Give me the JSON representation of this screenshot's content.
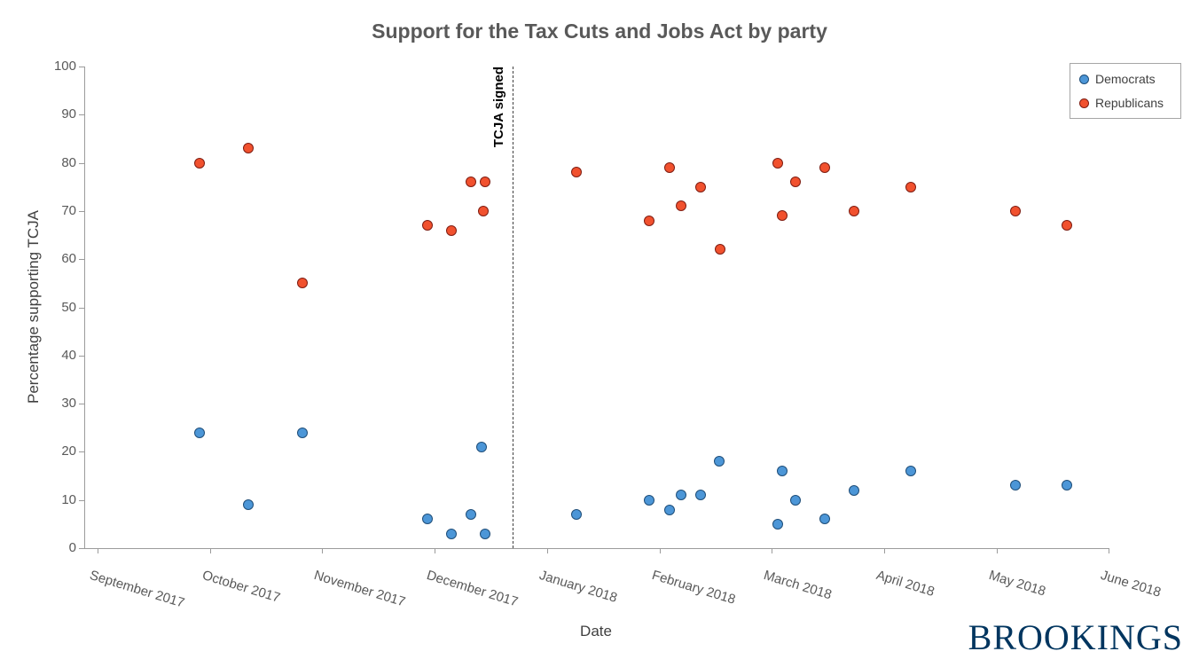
{
  "branding": {
    "logo_text": "BROOKINGS",
    "logo_color": "#00355f"
  },
  "chart_data": {
    "type": "scatter",
    "title": "Support for the Tax Cuts and Jobs Act by party",
    "xlabel": "Date",
    "ylabel": "Percentage supporting TCJA",
    "ylim": [
      0,
      100
    ],
    "y_ticks": [
      0,
      10,
      20,
      30,
      40,
      50,
      60,
      70,
      80,
      90,
      100
    ],
    "x_tick_labels": [
      "September 2017",
      "October 2017",
      "November 2017",
      "December 2017",
      "January 2018",
      "February 2018",
      "March 2018",
      "April 2018",
      "May 2018",
      "June 2018"
    ],
    "x_unit": "months_after_september_2017_tick",
    "grid": false,
    "legend": {
      "position": "top-right"
    },
    "annotation": {
      "label": "TCJA signed",
      "x": 3.69,
      "style": "vertical-dashed-line"
    },
    "series": [
      {
        "name": "Democrats",
        "fill": "#4c96d7",
        "stroke": "#1f4e79",
        "points": [
          [
            0.91,
            24
          ],
          [
            1.34,
            9
          ],
          [
            1.82,
            24
          ],
          [
            2.94,
            6
          ],
          [
            3.15,
            3
          ],
          [
            3.32,
            7
          ],
          [
            3.42,
            21
          ],
          [
            3.45,
            3
          ],
          [
            4.26,
            7
          ],
          [
            4.91,
            10
          ],
          [
            5.09,
            8
          ],
          [
            5.19,
            11
          ],
          [
            5.37,
            11
          ],
          [
            5.53,
            18
          ],
          [
            6.05,
            5
          ],
          [
            6.09,
            16
          ],
          [
            6.21,
            10
          ],
          [
            6.47,
            6
          ],
          [
            6.73,
            12
          ],
          [
            7.24,
            16
          ],
          [
            8.17,
            13
          ],
          [
            8.63,
            13
          ]
        ]
      },
      {
        "name": "Republicans",
        "fill": "#f1512e",
        "stroke": "#7f1d12",
        "points": [
          [
            0.91,
            80
          ],
          [
            1.34,
            83
          ],
          [
            1.82,
            55
          ],
          [
            2.94,
            67
          ],
          [
            3.15,
            66
          ],
          [
            3.32,
            76
          ],
          [
            3.45,
            76
          ],
          [
            3.43,
            70
          ],
          [
            4.26,
            78
          ],
          [
            4.91,
            68
          ],
          [
            5.09,
            79
          ],
          [
            5.19,
            71
          ],
          [
            5.37,
            75
          ],
          [
            5.54,
            62
          ],
          [
            6.05,
            80
          ],
          [
            6.09,
            69
          ],
          [
            6.21,
            76
          ],
          [
            6.47,
            79
          ],
          [
            6.73,
            70
          ],
          [
            7.24,
            75
          ],
          [
            8.17,
            70
          ],
          [
            8.63,
            67
          ]
        ]
      }
    ]
  }
}
